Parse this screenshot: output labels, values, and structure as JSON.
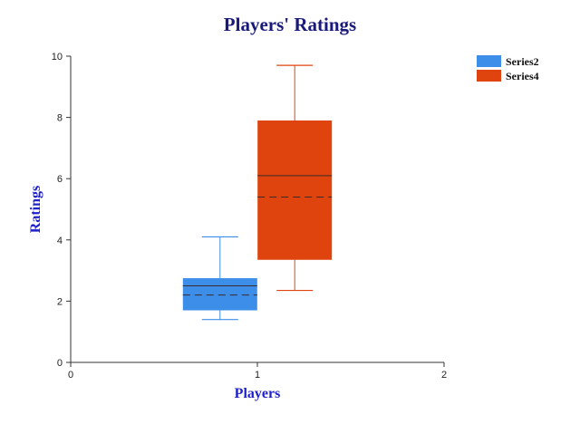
{
  "chart_data": {
    "type": "box",
    "title": "Players' Ratings",
    "xlabel": "Players",
    "ylabel": "Ratings",
    "xlim": [
      0,
      2
    ],
    "ylim": [
      0,
      10
    ],
    "xticks": [
      "0",
      "1",
      "2"
    ],
    "yticks": [
      "0",
      "2",
      "4",
      "6",
      "8",
      "10"
    ],
    "legend_position": "top-right",
    "series": [
      {
        "name": "Series2",
        "color": "#3d8ee9",
        "x": 0.8,
        "whisker_low": 1.4,
        "q1": 1.7,
        "median": 2.5,
        "mean": 2.2,
        "q3": 2.75,
        "whisker_high": 4.1
      },
      {
        "name": "Series4",
        "color": "#e0440e",
        "x": 1.2,
        "whisker_low": 2.35,
        "q1": 3.35,
        "median": 6.1,
        "mean": 5.4,
        "q3": 7.9,
        "whisker_high": 9.7
      }
    ]
  }
}
